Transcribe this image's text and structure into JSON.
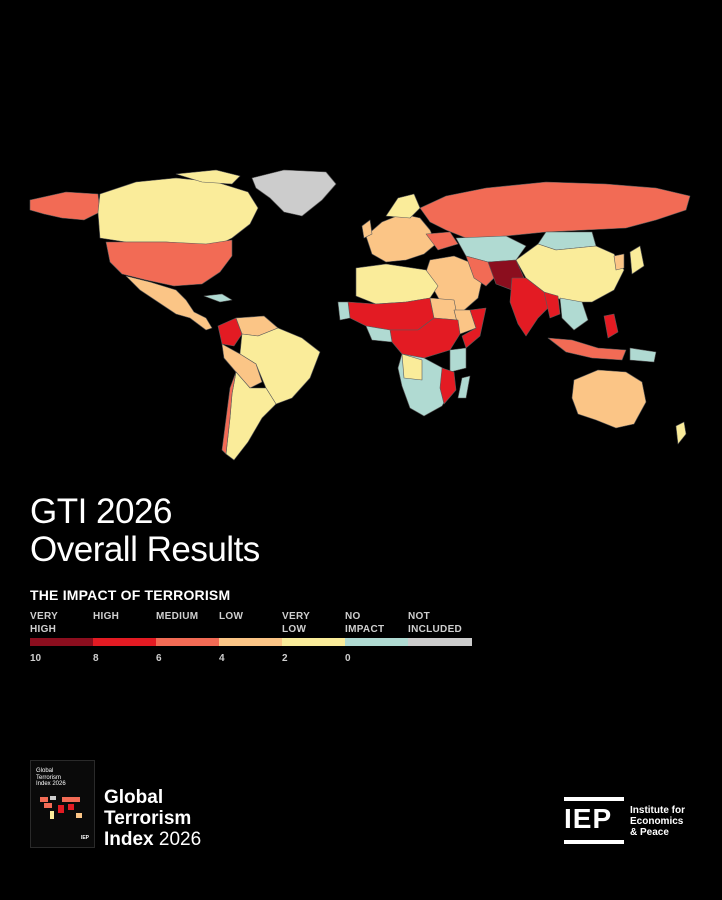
{
  "header": {
    "title_line1": "GTI 2026",
    "title_line2": "Overall Results"
  },
  "legend": {
    "title": "THE IMPACT OF TERRORISM",
    "categories": [
      {
        "label_line1": "VERY",
        "label_line2": "HIGH",
        "color": "#8b0e1e"
      },
      {
        "label_line1": "HIGH",
        "label_line2": "",
        "color": "#e31b23"
      },
      {
        "label_line1": "MEDIUM",
        "label_line2": "",
        "color": "#f26b55"
      },
      {
        "label_line1": "LOW",
        "label_line2": "",
        "color": "#fbc586"
      },
      {
        "label_line1": "VERY",
        "label_line2": "LOW",
        "color": "#faec9a"
      },
      {
        "label_line1": "NO",
        "label_line2": "IMPACT",
        "color": "#b0dad2"
      },
      {
        "label_line1": "NOT",
        "label_line2": "INCLUDED",
        "color": "#cccccc"
      }
    ],
    "scale_ticks": [
      "10",
      "8",
      "6",
      "4",
      "2",
      "0"
    ]
  },
  "map": {
    "regions": [
      {
        "name": "Greenland",
        "category": "NOT INCLUDED",
        "color": "#cccccc"
      },
      {
        "name": "Canada",
        "category": "VERY LOW",
        "color": "#faec9a"
      },
      {
        "name": "Alaska",
        "category": "MEDIUM",
        "color": "#f26b55"
      },
      {
        "name": "United States",
        "category": "MEDIUM",
        "color": "#f26b55"
      },
      {
        "name": "Mexico",
        "category": "LOW",
        "color": "#fbc586"
      },
      {
        "name": "Colombia",
        "category": "HIGH",
        "color": "#e31b23"
      },
      {
        "name": "Brazil",
        "category": "VERY LOW",
        "color": "#faec9a"
      },
      {
        "name": "Russia",
        "category": "MEDIUM",
        "color": "#f26b55"
      },
      {
        "name": "China",
        "category": "VERY LOW",
        "color": "#faec9a"
      },
      {
        "name": "Kazakhstan",
        "category": "NO IMPACT",
        "color": "#b0dad2"
      },
      {
        "name": "Pakistan",
        "category": "VERY HIGH",
        "color": "#8b0e1e"
      },
      {
        "name": "India",
        "category": "HIGH",
        "color": "#e31b23"
      },
      {
        "name": "Sahel",
        "category": "HIGH",
        "color": "#e31b23"
      },
      {
        "name": "Sahara",
        "category": "VERY LOW",
        "color": "#faec9a"
      },
      {
        "name": "Central Africa",
        "category": "HIGH",
        "color": "#e31b23"
      },
      {
        "name": "Southern Africa",
        "category": "NO IMPACT",
        "color": "#b0dad2"
      },
      {
        "name": "Mozambique",
        "category": "HIGH",
        "color": "#e31b23"
      },
      {
        "name": "Madagascar",
        "category": "NO IMPACT",
        "color": "#b0dad2"
      },
      {
        "name": "Somalia",
        "category": "HIGH",
        "color": "#e31b23"
      },
      {
        "name": "Middle East",
        "category": "LOW",
        "color": "#fbc586"
      },
      {
        "name": "Europe",
        "category": "LOW",
        "color": "#fbc586"
      },
      {
        "name": "Australia",
        "category": "LOW",
        "color": "#fbc586"
      },
      {
        "name": "Philippines",
        "category": "HIGH",
        "color": "#e31b23"
      }
    ]
  },
  "footer": {
    "cover_title_line1": "Global",
    "cover_title_line2": "Terrorism",
    "cover_title_line3": "Index 2026",
    "cover_logo": "IEP",
    "brand_line1": "Global",
    "brand_line2": "Terrorism",
    "brand_line3_word": "Index",
    "brand_line3_year": "2026",
    "iep_logo": "IEP",
    "iep_name_line1": "Institute for",
    "iep_name_line2": "Economics",
    "iep_name_line3": "& Peace"
  }
}
